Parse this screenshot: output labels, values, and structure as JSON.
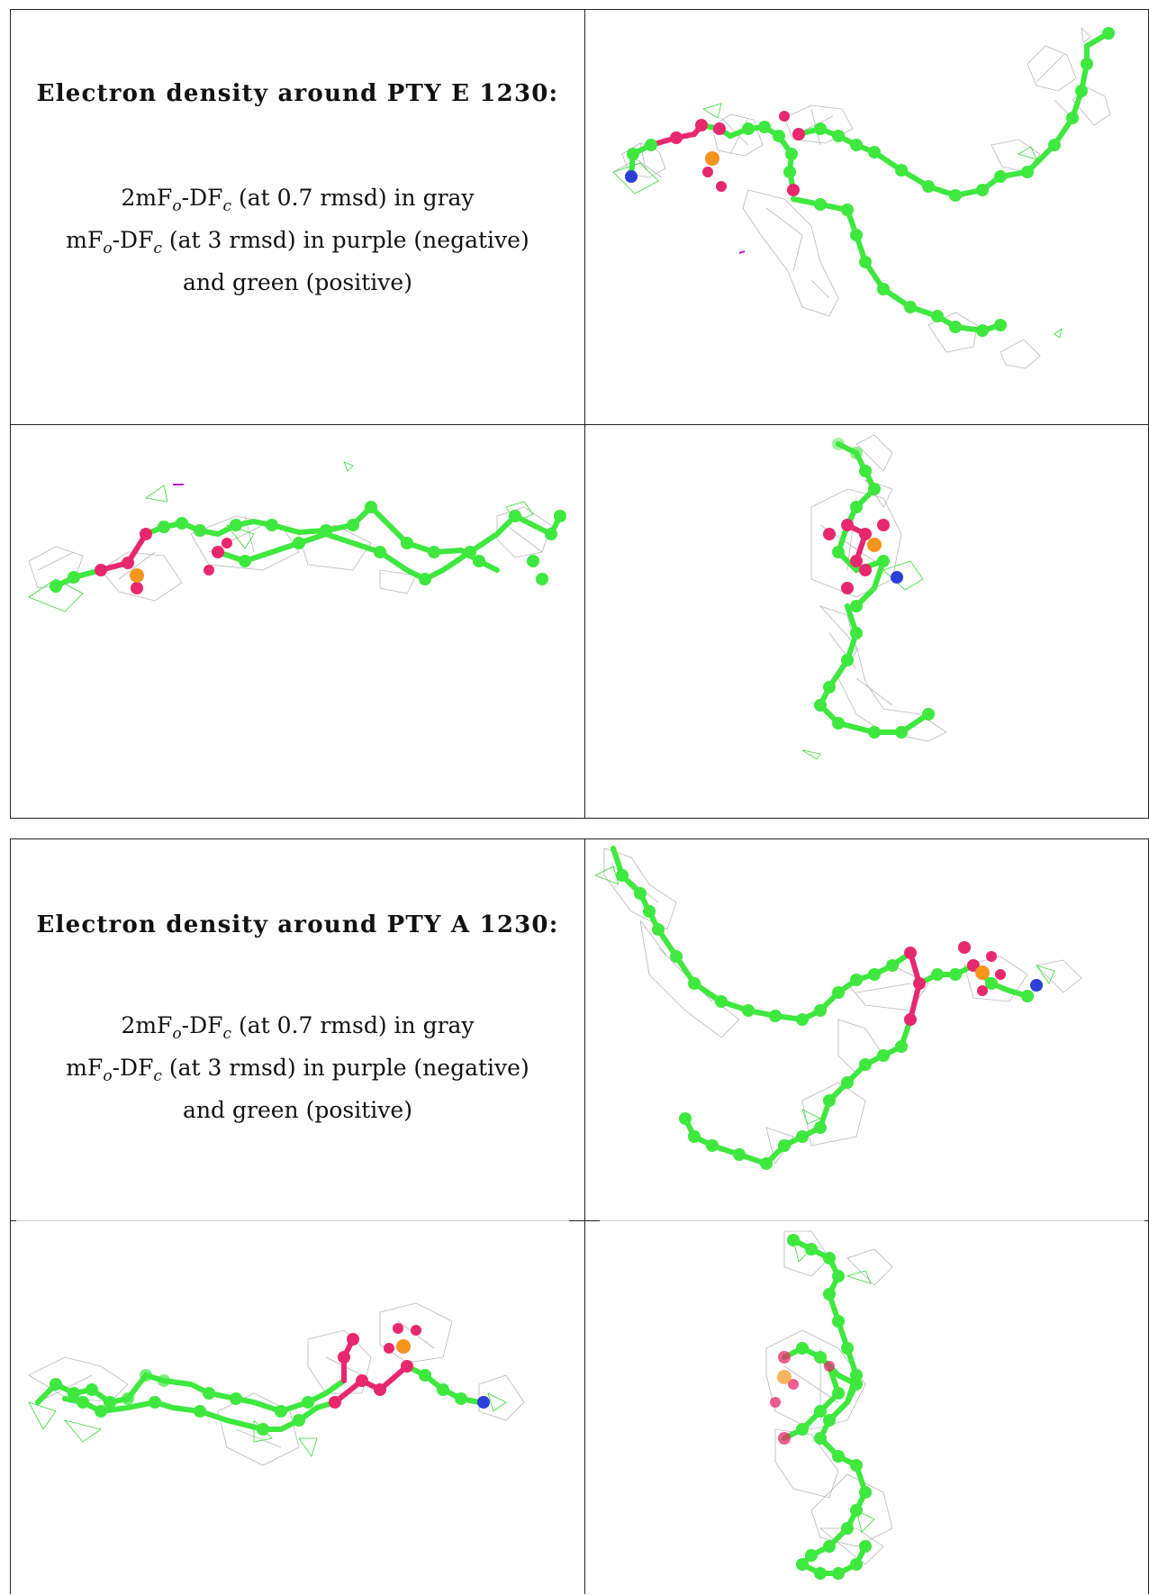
{
  "reports": [
    {
      "title": "Electron density around PTY E 1230:",
      "map_2fofc": {
        "prefix": "2mF",
        "sub_o": "o",
        "mid": "-DF",
        "sub_c": "c",
        "suffix": " (at 0.7 rmsd) in gray"
      },
      "map_fofc": {
        "prefix": "mF",
        "sub_o": "o",
        "mid": "-DF",
        "sub_c": "c",
        "suffix": " (at 3 rmsd) in purple (negative)"
      },
      "map_fofc_cont": "and green (positive)"
    },
    {
      "title": "Electron density around PTY A 1230:",
      "map_2fofc": {
        "prefix": "2mF",
        "sub_o": "o",
        "mid": "-DF",
        "sub_c": "c",
        "suffix": " (at 0.7 rmsd) in gray"
      },
      "map_fofc": {
        "prefix": "mF",
        "sub_o": "o",
        "mid": "-DF",
        "sub_c": "c",
        "suffix": " (at 3 rmsd) in purple (negative)"
      },
      "map_fofc_cont": "and green (positive)"
    }
  ],
  "colors": {
    "carbon": "#3ee83e",
    "oxygen": "#e8286e",
    "phosphorus": "#f7941d",
    "nitrogen": "#2c3fd6",
    "mesh_gray": "#b8b8b8",
    "mesh_green": "#33dd33",
    "mesh_purple": "#c01bd0"
  }
}
